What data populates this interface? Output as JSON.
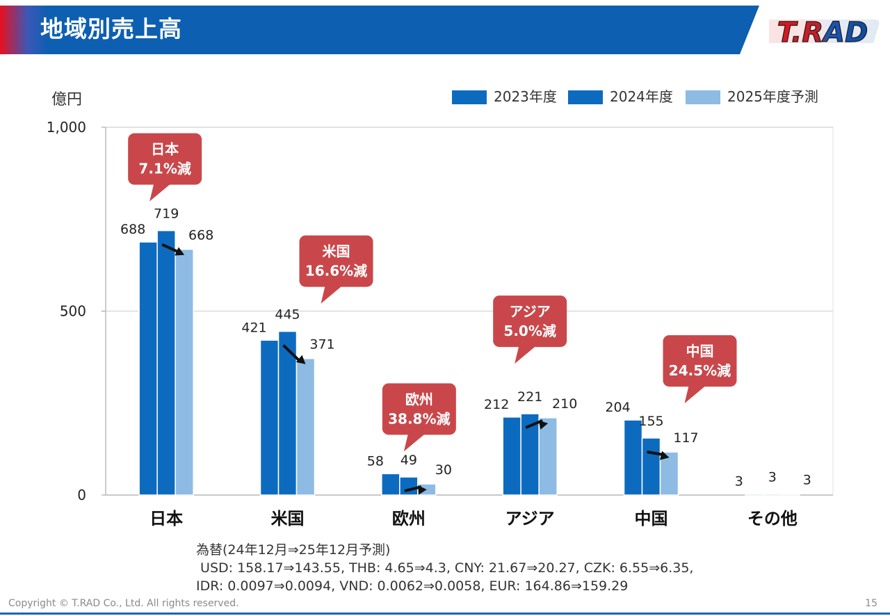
{
  "header": {
    "title": "地域別売上高",
    "logo_text": "T.RAD"
  },
  "colors": {
    "title_bar": "#0d5fb1",
    "series_2023": "#0d6bbf",
    "series_2024": "#0d6bbf",
    "series_2025": "#8dbbe3",
    "callout": "#c9474a",
    "arrow": "#111111"
  },
  "chart_data": {
    "type": "bar",
    "ylabel": "億円",
    "ylim": [
      0,
      1000
    ],
    "yticks": [
      {
        "value": 0,
        "label": "0"
      },
      {
        "value": 500,
        "label": "500"
      },
      {
        "value": 1000,
        "label": "1,000"
      }
    ],
    "grid": true,
    "legend": "top-right",
    "categories": [
      "日本",
      "米国",
      "欧州",
      "アジア",
      "中国",
      "その他"
    ],
    "series": [
      {
        "name": "2023年度",
        "values": [
          688,
          421,
          58,
          212,
          204,
          3
        ],
        "labels": [
          "688",
          "421",
          "58",
          "212",
          "204",
          "3"
        ]
      },
      {
        "name": "2024年度",
        "values": [
          719,
          445,
          49,
          221,
          155,
          3
        ],
        "labels": [
          "719",
          "445",
          "49",
          "221",
          "155",
          "3"
        ]
      },
      {
        "name": "2025年度予測",
        "values": [
          668,
          371,
          30,
          210,
          117,
          3
        ],
        "labels": [
          "668",
          "371",
          "30",
          "210",
          "117",
          "3"
        ]
      }
    ],
    "annotations": [
      {
        "category": "日本",
        "line1": "日本",
        "line2": "7.1%減"
      },
      {
        "category": "米国",
        "line1": "米国",
        "line2": "16.6%減"
      },
      {
        "category": "欧州",
        "line1": "欧州",
        "line2": "38.8%減"
      },
      {
        "category": "アジア",
        "line1": "アジア",
        "line2": "5.0%減"
      },
      {
        "category": "中国",
        "line1": "中国",
        "line2": "24.5%減"
      }
    ]
  },
  "fx_notes": {
    "line1": "為替(24年12月⇒25年12月予測)",
    "line2": " USD: 158.17⇒143.55, THB: 4.65⇒4.3, CNY: 21.67⇒20.27, CZK: 6.55⇒6.35,",
    "line3": "IDR: 0.0097⇒0.0094, VND: 0.0062⇒0.0058, EUR: 164.86⇒159.29"
  },
  "footer": {
    "copyright": "Copyright © T.RAD Co., Ltd. All rights reserved.",
    "page": "15"
  }
}
